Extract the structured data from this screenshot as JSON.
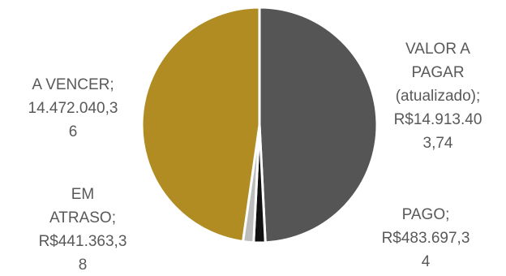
{
  "chart_data": {
    "type": "pie",
    "slices": [
      {
        "label": "VALOR A PAGAR (atualizado)",
        "value": 14913403.74,
        "color": "#555555",
        "data_label_lines": [
          "VALOR A",
          "PAGAR",
          "(atualizado);",
          "R$14.913.40",
          "3,74"
        ]
      },
      {
        "label": "PAGO",
        "value": 483697.34,
        "color": "#111111",
        "data_label_lines": [
          "PAGO;",
          "R$483.697,3",
          "4"
        ]
      },
      {
        "label": "EM ATRASO",
        "value": 441363.38,
        "color": "#bdbdbd",
        "data_label_lines": [
          "EM",
          "ATRASO;",
          "R$441.363,3",
          "8"
        ]
      },
      {
        "label": "A VENCER",
        "value": 14472040.36,
        "color": "#b08c22",
        "data_label_lines": [
          "A VENCER;",
          "14.472.040,3",
          "6"
        ]
      }
    ],
    "start_angle_deg": 0,
    "direction": "clockwise",
    "slice_border_color": "#ffffff",
    "label_color": "#595959",
    "legend": "none"
  }
}
